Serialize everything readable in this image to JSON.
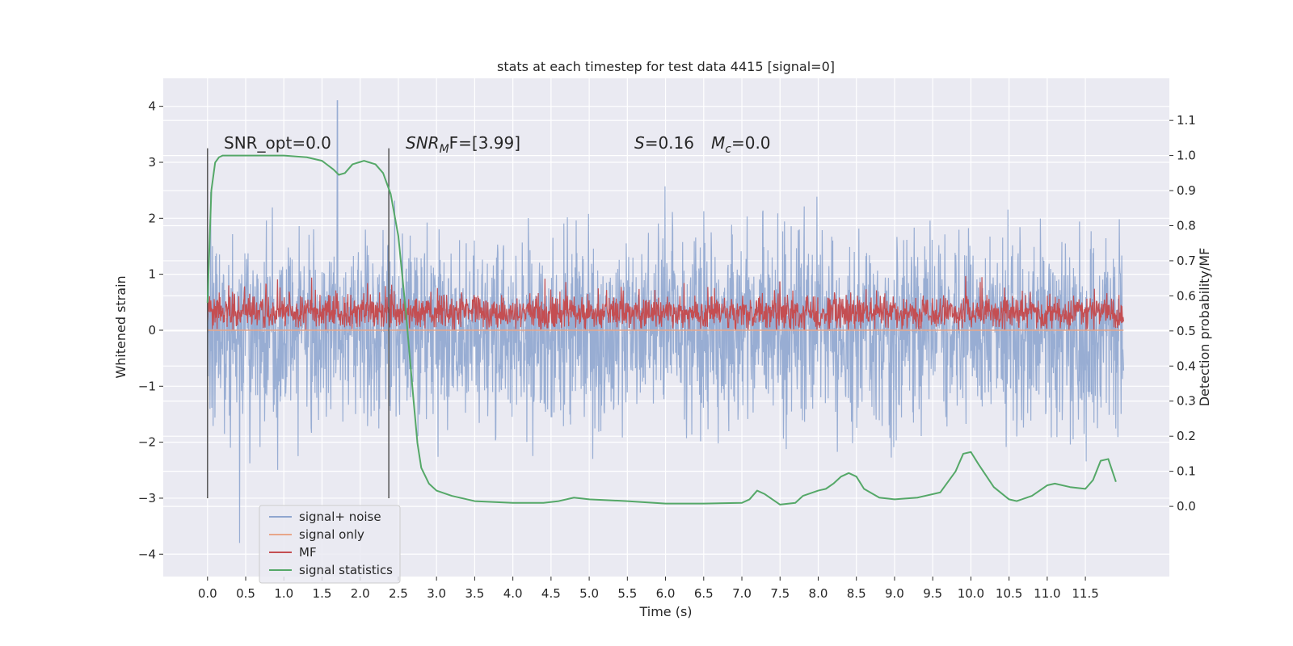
{
  "chart_data": {
    "type": "line",
    "title": "stats at each timestep for test data 4415 [signal=0]",
    "xlabel": "Time (s)",
    "ylabel": "Whitened strain",
    "ylabel_right": "Detection probability/MF",
    "xlim": [
      -0.58,
      12.6
    ],
    "ylim": [
      -4.4,
      4.5
    ],
    "ylim_right": [
      -0.2,
      1.22
    ],
    "x_ticks": [
      "0.0",
      "0.5",
      "1.0",
      "1.5",
      "2.0",
      "2.5",
      "3.0",
      "3.5",
      "4.0",
      "4.5",
      "5.0",
      "5.5",
      "6.0",
      "6.5",
      "7.0",
      "7.5",
      "8.0",
      "8.5",
      "9.0",
      "9.5",
      "10.0",
      "10.5",
      "11.0",
      "11.5"
    ],
    "y_ticks": [
      "−4",
      "−3",
      "−2",
      "−1",
      "0",
      "1",
      "2",
      "3",
      "4"
    ],
    "y_ticks_right": [
      "0.0",
      "0.1",
      "0.2",
      "0.3",
      "0.4",
      "0.5",
      "0.6",
      "0.7",
      "0.8",
      "0.9",
      "1.0",
      "1.1"
    ],
    "grid": true,
    "legend": {
      "placement": "lower-left",
      "entries": [
        {
          "label": "signal+ noise",
          "color": "#8fa6cf"
        },
        {
          "label": "signal only",
          "color": "#e8a68a"
        },
        {
          "label": "MF",
          "color": "#c44e52"
        },
        {
          "label": "signal statistics",
          "color": "#55a868"
        }
      ]
    },
    "annotations": {
      "snr_opt": "SNR_opt=0.0",
      "snr_mf_name": "SNR",
      "snr_mf_sub": "M",
      "snr_mf_rest": "F=[3.99]",
      "s_name": "S",
      "s_value": "=0.16",
      "mc_name": "M",
      "mc_sub": "c",
      "mc_value": "=0.0"
    },
    "window_markers_x": [
      0.0,
      2.375
    ],
    "series": [
      {
        "name": "signal+ noise",
        "axis": "left",
        "color": "#8fa6cf",
        "x_range": [
          0.0,
          12.0
        ],
        "typical_range": [
          -2.0,
          2.0
        ],
        "extremes": {
          "max": 4.1,
          "max_at": 1.7,
          "min": -3.8,
          "min_at": 0.42
        }
      },
      {
        "name": "signal only",
        "axis": "left",
        "color": "#e8a68a",
        "x": [
          0.0,
          12.0
        ],
        "y": [
          0.0,
          0.0
        ]
      },
      {
        "name": "MF",
        "axis": "left",
        "color": "#c44e52",
        "x_range": [
          0.0,
          12.0
        ],
        "typical_range": [
          0.0,
          0.7
        ],
        "peak": 0.97
      },
      {
        "name": "signal statistics",
        "axis": "right",
        "color": "#55a868",
        "x": [
          0.0,
          0.05,
          0.1,
          0.15,
          0.2,
          0.3,
          0.5,
          1.0,
          1.3,
          1.5,
          1.65,
          1.72,
          1.8,
          1.9,
          2.05,
          2.2,
          2.3,
          2.4,
          2.5,
          2.6,
          2.7,
          2.75,
          2.8,
          2.9,
          3.0,
          3.2,
          3.5,
          4.0,
          4.4,
          4.6,
          4.8,
          5.0,
          5.5,
          6.0,
          6.5,
          7.0,
          7.1,
          7.2,
          7.3,
          7.5,
          7.7,
          7.8,
          8.0,
          8.1,
          8.2,
          8.3,
          8.4,
          8.5,
          8.6,
          8.8,
          9.0,
          9.3,
          9.6,
          9.8,
          9.9,
          10.0,
          10.1,
          10.3,
          10.5,
          10.6,
          10.8,
          11.0,
          11.1,
          11.3,
          11.5,
          11.6,
          11.7,
          11.8,
          11.9
        ],
        "y": [
          0.58,
          0.9,
          0.98,
          0.995,
          1.0,
          1.0,
          1.0,
          1.0,
          0.995,
          0.985,
          0.96,
          0.945,
          0.95,
          0.975,
          0.985,
          0.975,
          0.95,
          0.89,
          0.77,
          0.55,
          0.3,
          0.18,
          0.11,
          0.065,
          0.045,
          0.03,
          0.015,
          0.01,
          0.01,
          0.015,
          0.025,
          0.02,
          0.015,
          0.008,
          0.008,
          0.01,
          0.02,
          0.045,
          0.035,
          0.005,
          0.01,
          0.03,
          0.045,
          0.05,
          0.065,
          0.085,
          0.095,
          0.085,
          0.05,
          0.025,
          0.02,
          0.025,
          0.04,
          0.1,
          0.15,
          0.155,
          0.12,
          0.055,
          0.02,
          0.015,
          0.03,
          0.06,
          0.065,
          0.055,
          0.05,
          0.075,
          0.13,
          0.135,
          0.07
        ]
      }
    ]
  }
}
